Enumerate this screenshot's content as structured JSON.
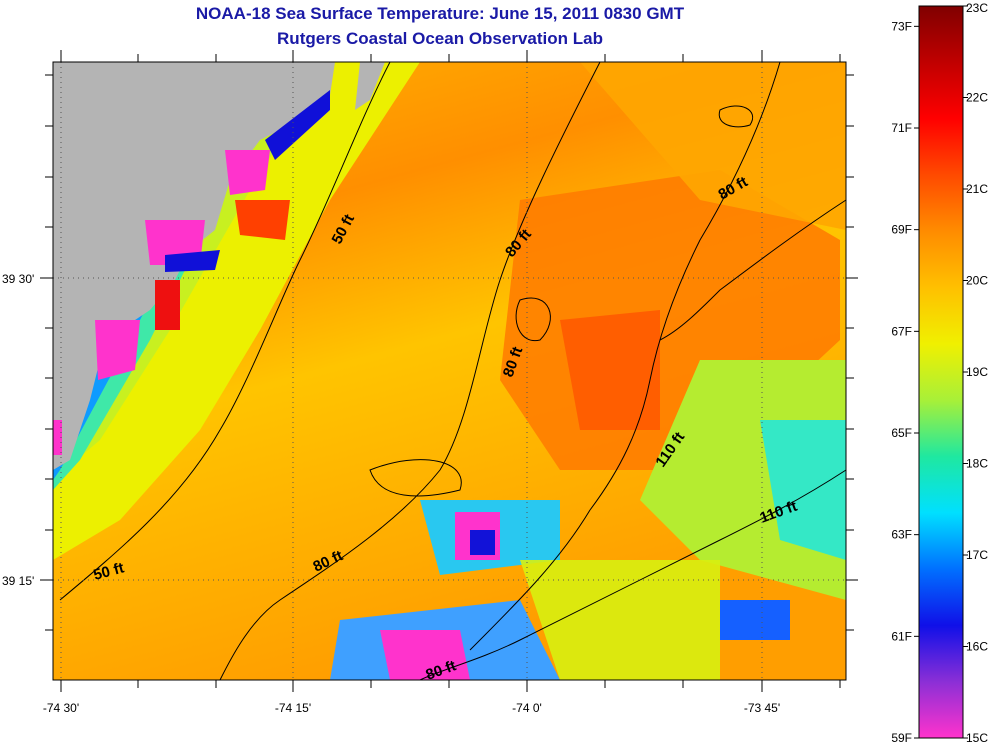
{
  "header": {
    "title": "NOAA-18 Sea Surface Temperature:  June 15, 2011 0830 GMT",
    "subtitle": "Rutgers Coastal Ocean Observation Lab"
  },
  "map": {
    "lat_ticks": [
      {
        "label": "39 30'",
        "lat": 39.5
      },
      {
        "label": "39 15'",
        "lat": 39.25
      }
    ],
    "lon_ticks": [
      {
        "label": "-74 30'",
        "lon": -74.5
      },
      {
        "label": "-74 15'",
        "lon": -74.25
      },
      {
        "label": "-74 0'",
        "lon": -74.0
      },
      {
        "label": "-73 45'",
        "lon": -73.75
      }
    ],
    "contour_labels": [
      "50 ft",
      "80 ft",
      "80 ft",
      "80 ft",
      "110 ft",
      "110 ft",
      "50 ft",
      "80 ft",
      "80 ft"
    ],
    "land_color": "#b4b4b4"
  },
  "colorbar": {
    "celsius_labels": [
      "23C",
      "22C",
      "21C",
      "20C",
      "19C",
      "18C",
      "17C",
      "16C",
      "15C"
    ],
    "fahrenheit_labels": [
      "73F",
      "71F",
      "69F",
      "67F",
      "65F",
      "63F",
      "61F",
      "59F"
    ],
    "celsius_range": [
      15,
      23
    ],
    "fahrenheit_range": [
      59,
      73.4
    ],
    "colors": [
      "#ff33cc",
      "#8b2fd6",
      "#1010e8",
      "#0070ff",
      "#00e0ff",
      "#1fe8a0",
      "#a8f038",
      "#f0f000",
      "#ffc000",
      "#ff8c00",
      "#ff4a00",
      "#ff0000",
      "#c00000",
      "#800000"
    ]
  }
}
